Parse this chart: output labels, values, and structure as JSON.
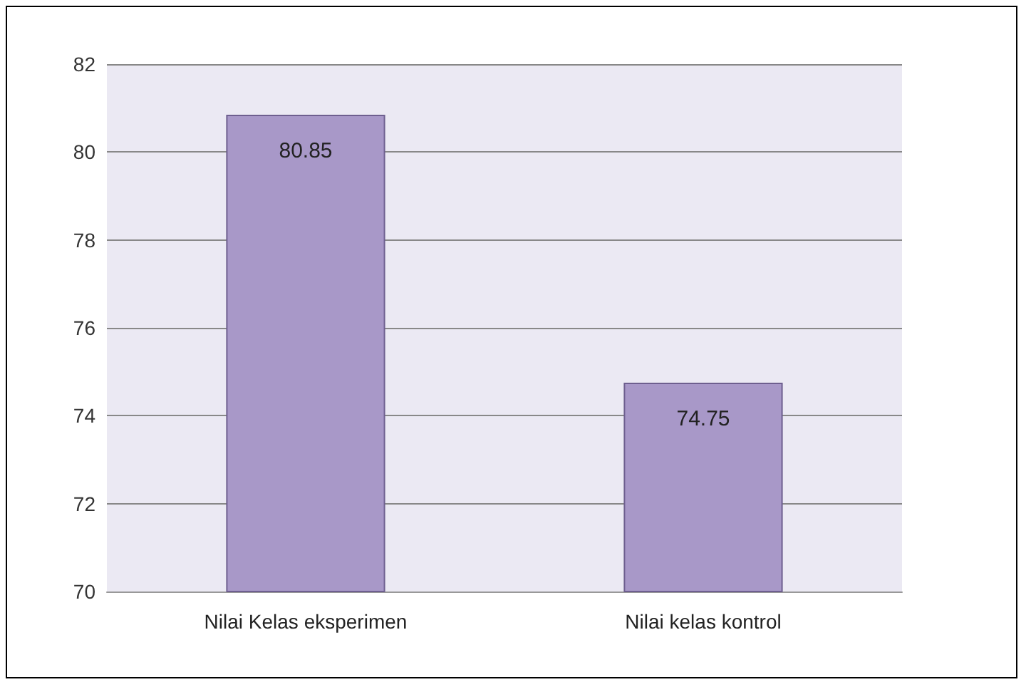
{
  "chart_data": {
    "type": "bar",
    "categories": [
      "Nilai Kelas eksperimen",
      "Nilai kelas kontrol"
    ],
    "values": [
      80.85,
      74.75
    ],
    "color": "#a898c8",
    "ylim": [
      70,
      82
    ],
    "yticks": [
      70,
      72,
      74,
      76,
      78,
      80,
      82
    ],
    "grid": "y",
    "data_labels": true
  }
}
